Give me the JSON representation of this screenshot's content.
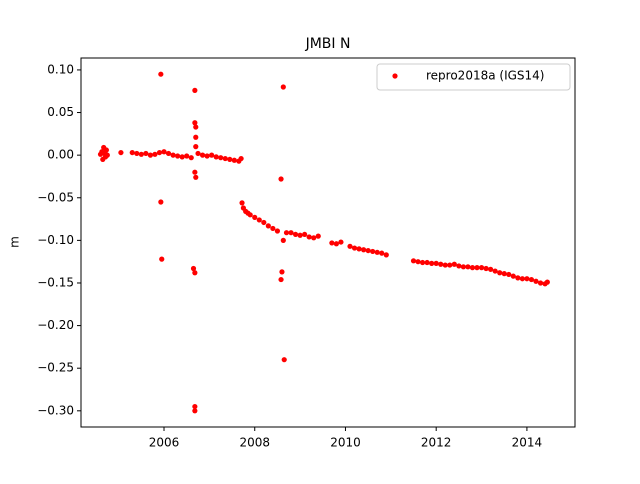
{
  "chart_data": {
    "type": "scatter",
    "title": "JMBI N",
    "ylabel": "m",
    "xlim": [
      2004.17,
      2015.06
    ],
    "ylim": [
      -0.319,
      0.114
    ],
    "xticks": [
      2006,
      2008,
      2010,
      2012,
      2014
    ],
    "yticks": [
      {
        "value": 0.1,
        "label": "0.10"
      },
      {
        "value": 0.05,
        "label": "0.05"
      },
      {
        "value": 0,
        "label": "0.00"
      },
      {
        "value": -0.05,
        "label": "−0.05"
      },
      {
        "value": -0.1,
        "label": "−0.10"
      },
      {
        "value": -0.15,
        "label": "−0.15"
      },
      {
        "value": -0.2,
        "label": "−0.20"
      },
      {
        "value": -0.25,
        "label": "−0.25"
      },
      {
        "value": -0.3,
        "label": "−0.30"
      }
    ],
    "grid": false,
    "legend": "upper right",
    "series": [
      {
        "name": "repro2018a (IGS14)",
        "color": "#ff0000",
        "x": [
          2004.6,
          2004.63,
          2004.65,
          2004.67,
          2004.69,
          2004.71,
          2004.73,
          2004.75,
          2005.05,
          2005.3,
          2005.4,
          2005.5,
          2005.6,
          2005.7,
          2005.8,
          2005.9,
          2006.0,
          2006.1,
          2006.2,
          2006.3,
          2006.4,
          2006.5,
          2006.6,
          2006.75,
          2006.85,
          2006.95,
          2007.05,
          2007.15,
          2007.25,
          2007.35,
          2007.45,
          2007.55,
          2007.65,
          2007.7,
          2007.72,
          2007.75,
          2007.8,
          2007.85,
          2007.9,
          2008.0,
          2008.1,
          2008.2,
          2008.3,
          2008.4,
          2008.5,
          2008.7,
          2008.8,
          2008.9,
          2009.0,
          2009.1,
          2009.2,
          2009.3,
          2009.4,
          2009.7,
          2009.8,
          2009.9,
          2010.1,
          2010.2,
          2010.3,
          2010.4,
          2010.5,
          2010.6,
          2010.7,
          2010.8,
          2010.9,
          2011.5,
          2011.6,
          2011.7,
          2011.8,
          2011.9,
          2012.0,
          2012.1,
          2012.2,
          2012.3,
          2012.4,
          2012.5,
          2012.6,
          2012.7,
          2012.8,
          2012.9,
          2013.0,
          2013.1,
          2013.2,
          2013.3,
          2013.4,
          2013.5,
          2013.6,
          2013.7,
          2013.8,
          2013.9,
          2014.0,
          2014.1,
          2014.2,
          2014.3,
          2014.4,
          2014.45,
          2005.93,
          2005.93,
          2005.95,
          2006.68,
          2006.68,
          2006.7,
          2006.7,
          2006.7,
          2006.68,
          2006.7,
          2006.65,
          2006.68,
          2006.68,
          2006.68,
          2008.63,
          2008.58,
          2008.63,
          2008.6,
          2008.58,
          2008.65
        ],
        "values": [
          0.001,
          0.004,
          -0.005,
          0.009,
          0.002,
          -0.002,
          0.006,
          0.0,
          0.003,
          0.003,
          0.002,
          0.001,
          0.002,
          0.0,
          0.001,
          0.003,
          0.004,
          0.002,
          0.0,
          -0.001,
          -0.002,
          -0.001,
          -0.003,
          0.002,
          0.0,
          -0.001,
          0.0,
          -0.002,
          -0.003,
          -0.004,
          -0.005,
          -0.006,
          -0.007,
          -0.004,
          -0.056,
          -0.062,
          -0.066,
          -0.068,
          -0.07,
          -0.073,
          -0.076,
          -0.079,
          -0.083,
          -0.086,
          -0.089,
          -0.091,
          -0.091,
          -0.093,
          -0.094,
          -0.093,
          -0.096,
          -0.097,
          -0.095,
          -0.103,
          -0.104,
          -0.102,
          -0.107,
          -0.109,
          -0.11,
          -0.111,
          -0.112,
          -0.113,
          -0.114,
          -0.115,
          -0.117,
          -0.124,
          -0.125,
          -0.126,
          -0.126,
          -0.127,
          -0.127,
          -0.128,
          -0.129,
          -0.129,
          -0.128,
          -0.13,
          -0.131,
          -0.131,
          -0.132,
          -0.132,
          -0.132,
          -0.133,
          -0.134,
          -0.136,
          -0.138,
          -0.139,
          -0.14,
          -0.142,
          -0.144,
          -0.145,
          -0.145,
          -0.146,
          -0.148,
          -0.15,
          -0.151,
          -0.149,
          0.095,
          -0.055,
          -0.122,
          0.076,
          0.038,
          0.033,
          0.021,
          0.01,
          -0.02,
          -0.026,
          -0.133,
          -0.138,
          -0.295,
          -0.3,
          0.08,
          -0.028,
          -0.1,
          -0.137,
          -0.146,
          -0.24
        ]
      }
    ]
  }
}
